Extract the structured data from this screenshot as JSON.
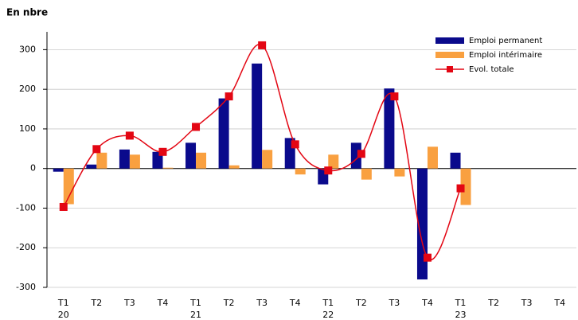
{
  "chart_data": {
    "type": "bar-line",
    "title": "En nbre",
    "categories": [
      "T1",
      "T2",
      "T3",
      "T4",
      "T1",
      "T2",
      "T3",
      "T4",
      "T1",
      "T2",
      "T3",
      "T4",
      "T1",
      "T2",
      "T3",
      "T4"
    ],
    "category_years": [
      "20",
      null,
      null,
      null,
      "21",
      null,
      null,
      null,
      "22",
      null,
      null,
      null,
      "23",
      null,
      null,
      null
    ],
    "series": [
      {
        "name": "Emploi permanent",
        "kind": "bar",
        "color": "#0a0a8c",
        "values": [
          -8,
          10,
          48,
          42,
          65,
          177,
          265,
          77,
          -40,
          65,
          202,
          -280,
          40,
          null,
          null,
          null
        ]
      },
      {
        "name": "Emploi intérimaire",
        "kind": "bar",
        "color": "#f9a040",
        "values": [
          -90,
          40,
          35,
          2,
          40,
          8,
          47,
          -15,
          35,
          -28,
          -20,
          55,
          -92,
          null,
          null,
          null
        ]
      },
      {
        "name": "Evol. totale",
        "kind": "line",
        "color": "#e30613",
        "values": [
          -97,
          49,
          83,
          42,
          105,
          182,
          311,
          61,
          -5,
          37,
          182,
          -225,
          -50,
          null,
          null,
          null
        ]
      }
    ],
    "ylim": [
      -300,
      345
    ],
    "yticks": [
      -300,
      -200,
      -100,
      0,
      100,
      200,
      300
    ],
    "grid": true
  }
}
